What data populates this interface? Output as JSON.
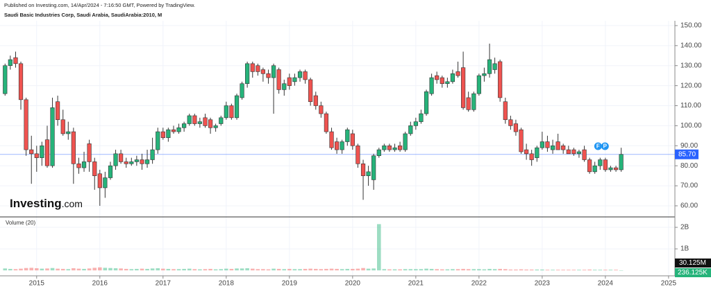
{
  "header": {
    "published": "Published on Investing.com, 14/Apr/2024 - 7:16:50 GMT, Powered by TradingView.",
    "instrument": "Saudi Basic Industries Corp, Saudi Arabia, SaudiArabia:2010, M"
  },
  "logo": {
    "brand": "Investing",
    "suffix": ".com"
  },
  "chart_data": {
    "type": "candlestick",
    "up_color": "#26b37a",
    "down_color": "#ef5350",
    "xlim": [
      2014.42,
      2025.1
    ],
    "xticks": [
      2015,
      2016,
      2017,
      2018,
      2019,
      2020,
      2021,
      2022,
      2023,
      2024,
      2025
    ],
    "ylim": [
      54.8,
      152.4
    ],
    "yticks": [
      {
        "value": 60,
        "label": "60.00"
      },
      {
        "value": 70,
        "label": "70.00"
      },
      {
        "value": 80,
        "label": "80.00"
      },
      {
        "value": 90,
        "label": "90.00"
      },
      {
        "value": 100,
        "label": "100.00"
      },
      {
        "value": 110,
        "label": "110.00"
      },
      {
        "value": 120,
        "label": "120.00"
      },
      {
        "value": 130,
        "label": "130.00"
      },
      {
        "value": 140,
        "label": "140.00"
      },
      {
        "value": 150,
        "label": "150.00"
      }
    ],
    "last_price": {
      "value": 85.7,
      "label": "85.70",
      "color": "#2962ff"
    },
    "events": [
      "F",
      "P"
    ],
    "x": [
      2014.5,
      2014.583,
      2014.667,
      2014.75,
      2014.833,
      2014.917,
      2015,
      2015.083,
      2015.167,
      2015.25,
      2015.333,
      2015.417,
      2015.5,
      2015.583,
      2015.667,
      2015.75,
      2015.833,
      2015.917,
      2016,
      2016.083,
      2016.167,
      2016.25,
      2016.333,
      2016.417,
      2016.5,
      2016.583,
      2016.667,
      2016.75,
      2016.833,
      2016.917,
      2017,
      2017.083,
      2017.167,
      2017.25,
      2017.333,
      2017.417,
      2017.5,
      2017.583,
      2017.667,
      2017.75,
      2017.833,
      2017.917,
      2018,
      2018.083,
      2018.167,
      2018.25,
      2018.333,
      2018.417,
      2018.5,
      2018.583,
      2018.667,
      2018.75,
      2018.833,
      2018.917,
      2019,
      2019.083,
      2019.167,
      2019.25,
      2019.333,
      2019.417,
      2019.5,
      2019.583,
      2019.667,
      2019.75,
      2019.833,
      2019.917,
      2020,
      2020.083,
      2020.167,
      2020.25,
      2020.333,
      2020.417,
      2020.5,
      2020.583,
      2020.667,
      2020.75,
      2020.833,
      2020.917,
      2021,
      2021.083,
      2021.167,
      2021.25,
      2021.333,
      2021.417,
      2021.5,
      2021.583,
      2021.667,
      2021.75,
      2021.833,
      2021.917,
      2022,
      2022.083,
      2022.167,
      2022.25,
      2022.333,
      2022.417,
      2022.5,
      2022.583,
      2022.667,
      2022.75,
      2022.833,
      2022.917,
      2023,
      2023.083,
      2023.167,
      2023.25,
      2023.333,
      2023.417,
      2023.5,
      2023.583,
      2023.667,
      2023.75,
      2023.833,
      2023.917,
      2024,
      2024.083,
      2024.167,
      2024.25
    ],
    "open": [
      116,
      130,
      134,
      131,
      113,
      88,
      86,
      84,
      93,
      80,
      112,
      103,
      96,
      97,
      81,
      79,
      91,
      82,
      76,
      69,
      74,
      80,
      86,
      82,
      81,
      82,
      83,
      81,
      83,
      88,
      97,
      94,
      98,
      97,
      99,
      101,
      105,
      101,
      104,
      103,
      99,
      101,
      104,
      110,
      104,
      114,
      121,
      131,
      130,
      128,
      126,
      124,
      128,
      118,
      124,
      122,
      124,
      127,
      123,
      115,
      110,
      106,
      97,
      92,
      88,
      92,
      96,
      90,
      81,
      75,
      73,
      85,
      88,
      90,
      88,
      90,
      88,
      96,
      100,
      102,
      106,
      116,
      125,
      124,
      121,
      122,
      127,
      129,
      114,
      108,
      116,
      125,
      126,
      128,
      132,
      112,
      103,
      101,
      98,
      88,
      86,
      84,
      89,
      92,
      88,
      92,
      90,
      88,
      88,
      86,
      88,
      83,
      77,
      80,
      83,
      78,
      79,
      78
    ],
    "high": [
      131,
      135,
      137,
      132,
      114,
      95,
      90,
      92,
      100,
      114,
      115,
      108,
      102,
      99,
      84,
      87,
      93,
      84,
      78,
      77,
      82,
      88,
      88,
      84,
      84,
      85,
      86,
      88,
      94,
      99,
      99,
      99,
      100,
      101,
      102,
      106,
      106,
      104,
      106,
      104,
      101,
      105,
      112,
      111,
      116,
      122,
      132,
      132,
      131,
      129,
      128,
      131,
      129,
      123,
      126,
      126,
      128,
      128,
      124,
      117,
      112,
      107,
      99,
      94,
      93,
      99,
      98,
      91,
      83,
      80,
      86,
      89,
      91,
      91,
      91,
      92,
      97,
      102,
      104,
      108,
      118,
      126,
      127,
      125,
      124,
      128,
      132,
      137,
      117,
      117,
      126,
      129,
      141,
      134,
      133,
      114,
      105,
      103,
      99,
      91,
      88,
      90,
      97,
      95,
      93,
      96,
      91,
      90,
      89,
      88,
      90,
      84,
      82,
      84,
      84,
      80,
      80,
      89
    ],
    "low": [
      115,
      128,
      129,
      108,
      85,
      71,
      77,
      80,
      79,
      79,
      100,
      95,
      93,
      71,
      76,
      77,
      77,
      68,
      60,
      64,
      73,
      78,
      81,
      79,
      80,
      80,
      78,
      79,
      81,
      86,
      93,
      92,
      96,
      96,
      97,
      100,
      100,
      99,
      99,
      96,
      97,
      100,
      103,
      103,
      103,
      113,
      119,
      124,
      125,
      122,
      121,
      106,
      116,
      115,
      118,
      120,
      122,
      121,
      110,
      108,
      104,
      96,
      88,
      86,
      86,
      90,
      88,
      79,
      63,
      70,
      68,
      84,
      87,
      87,
      87,
      87,
      87,
      95,
      98,
      101,
      105,
      115,
      121,
      119,
      119,
      121,
      124,
      108,
      107,
      107,
      115,
      122,
      124,
      126,
      112,
      101,
      98,
      95,
      86,
      83,
      80,
      82,
      88,
      87,
      86,
      88,
      86,
      86,
      85,
      84,
      82,
      76,
      76,
      78,
      77,
      77,
      77,
      77
    ],
    "close": [
      130,
      133,
      131,
      113,
      88,
      86,
      84,
      90,
      80,
      109,
      103,
      96,
      97,
      81,
      79,
      82,
      82,
      75,
      69,
      74,
      80,
      86,
      82,
      81,
      82,
      83,
      81,
      83,
      88,
      97,
      94,
      98,
      97,
      99,
      101,
      105,
      101,
      102,
      100,
      99,
      100,
      104,
      110,
      104,
      115,
      121,
      131,
      127,
      127,
      126,
      124,
      130,
      118,
      121,
      120,
      124,
      127,
      123,
      112,
      110,
      106,
      97,
      89,
      88,
      92,
      98,
      90,
      81,
      75,
      77,
      85,
      88,
      90,
      88,
      89,
      88,
      96,
      100,
      102,
      106,
      117,
      124,
      123,
      121,
      122,
      126,
      125,
      109,
      108,
      116,
      125,
      126,
      133,
      131,
      114,
      103,
      100,
      97,
      87,
      86,
      83,
      89,
      92,
      89,
      90,
      88,
      88,
      86,
      86,
      87,
      83,
      77,
      80,
      83,
      78,
      79,
      78,
      85.7
    ],
    "volume_name": "Volume (20)",
    "volume_ylim": [
      -60000000,
      2420000000
    ],
    "volume_yticks": [
      {
        "value": 1000000000,
        "label": "1B"
      },
      {
        "value": 2000000000,
        "label": "2B"
      }
    ],
    "volume": [
      90000000.0,
      70000000.0,
      60000000.0,
      80000000.0,
      110000000.0,
      120000000.0,
      100000000.0,
      80000000.0,
      90000000.0,
      110000000.0,
      80000000.0,
      70000000.0,
      60000000.0,
      100000000.0,
      80000000.0,
      70000000.0,
      90000000.0,
      120000000.0,
      140000000.0,
      120000000.0,
      110000000.0,
      100000000.0,
      90000000.0,
      70000000.0,
      60000000.0,
      70000000.0,
      80000000.0,
      70000000.0,
      90000000.0,
      100000000.0,
      80000000.0,
      70000000.0,
      60000000.0,
      60000000.0,
      70000000.0,
      80000000.0,
      60000000.0,
      50000000.0,
      60000000.0,
      70000000.0,
      50000000.0,
      60000000.0,
      80000000.0,
      70000000.0,
      90000000.0,
      90000000.0,
      100000000.0,
      80000000.0,
      60000000.0,
      60000000.0,
      50000000.0,
      80000000.0,
      70000000.0,
      60000000.0,
      70000000.0,
      60000000.0,
      60000000.0,
      70000000.0,
      80000000.0,
      70000000.0,
      60000000.0,
      70000000.0,
      80000000.0,
      70000000.0,
      60000000.0,
      70000000.0,
      70000000.0,
      80000000.0,
      110000000.0,
      80000000.0,
      90000000.0,
      2150000000.0,
      60000000.0,
      50000000.0,
      50000000.0,
      50000000.0,
      60000000.0,
      60000000.0,
      60000000.0,
      60000000.0,
      80000000.0,
      70000000.0,
      60000000.0,
      50000000.0,
      50000000.0,
      60000000.0,
      60000000.0,
      70000000.0,
      60000000.0,
      60000000.0,
      60000000.0,
      50000000.0,
      70000000.0,
      60000000.0,
      70000000.0,
      60000000.0,
      40000000.0,
      40000000.0,
      50000000.0,
      40000000.0,
      40000000.0,
      40000000.0,
      40000000.0,
      30000000.0,
      30000000.0,
      30000000.0,
      30000000.0,
      30000000.0,
      30000000.0,
      30000000.0,
      30000000.0,
      40000000.0,
      30000000.0,
      30000000.0,
      30000000.0,
      30000000.0,
      30000000.0,
      236125
    ],
    "volume_value_labels": {
      "118": "236.125K"
    },
    "volume_last_label": "236.125K",
    "volume_ma": {
      "value": 30125000,
      "label": "30.125M"
    }
  }
}
